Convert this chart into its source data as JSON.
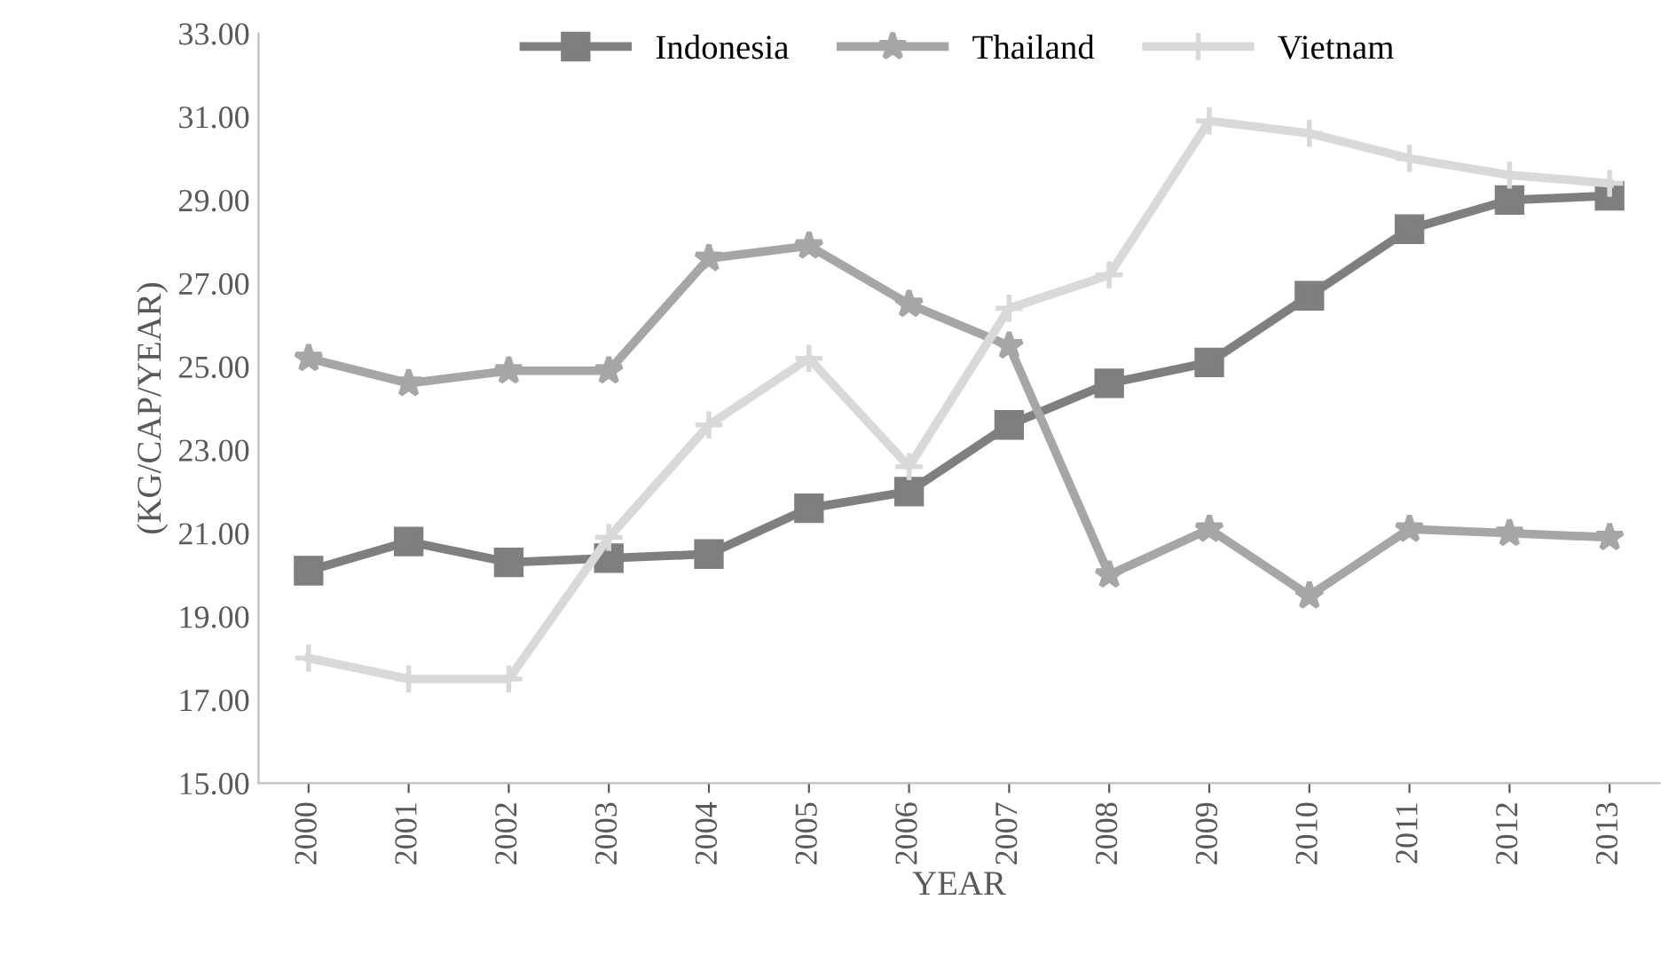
{
  "chart_data": {
    "type": "line",
    "xlabel": "YEAR",
    "ylabel": "(KG/CAP/YEAR)",
    "categories": [
      "2000",
      "2001",
      "2002",
      "2003",
      "2004",
      "2005",
      "2006",
      "2007",
      "2008",
      "2009",
      "2010",
      "2011",
      "2012",
      "2013"
    ],
    "series": [
      {
        "name": "Indonesia",
        "color": "#7f7f7f",
        "marker": "square",
        "values": [
          20.1,
          20.8,
          20.3,
          20.4,
          20.5,
          21.6,
          22.0,
          23.6,
          24.6,
          25.1,
          26.7,
          28.3,
          29.0,
          29.1
        ]
      },
      {
        "name": "Thailand",
        "color": "#a6a6a6",
        "marker": "star",
        "values": [
          25.2,
          24.6,
          24.9,
          24.9,
          27.6,
          27.9,
          26.5,
          25.5,
          20.0,
          21.1,
          19.5,
          21.1,
          21.0,
          20.9
        ]
      },
      {
        "name": "Vietnam",
        "color": "#d9d9d9",
        "marker": "cross",
        "values": [
          18.0,
          17.5,
          17.5,
          20.9,
          23.6,
          25.2,
          22.6,
          26.4,
          27.2,
          30.9,
          30.6,
          30.0,
          29.6,
          29.4
        ]
      }
    ],
    "ylim": [
      15,
      33
    ],
    "yticks": [
      {
        "value": 15,
        "label": "15.00"
      },
      {
        "value": 17,
        "label": "17.00"
      },
      {
        "value": 19,
        "label": "19.00"
      },
      {
        "value": 21,
        "label": "21.00"
      },
      {
        "value": 23,
        "label": "23.00"
      },
      {
        "value": 25,
        "label": "25.00"
      },
      {
        "value": 27,
        "label": "27.00"
      },
      {
        "value": 29,
        "label": "29.00"
      },
      {
        "value": 31,
        "label": "31.00"
      },
      {
        "value": 33,
        "label": "33.00"
      }
    ],
    "grid": false,
    "legend": "top",
    "line_style": "solid"
  }
}
